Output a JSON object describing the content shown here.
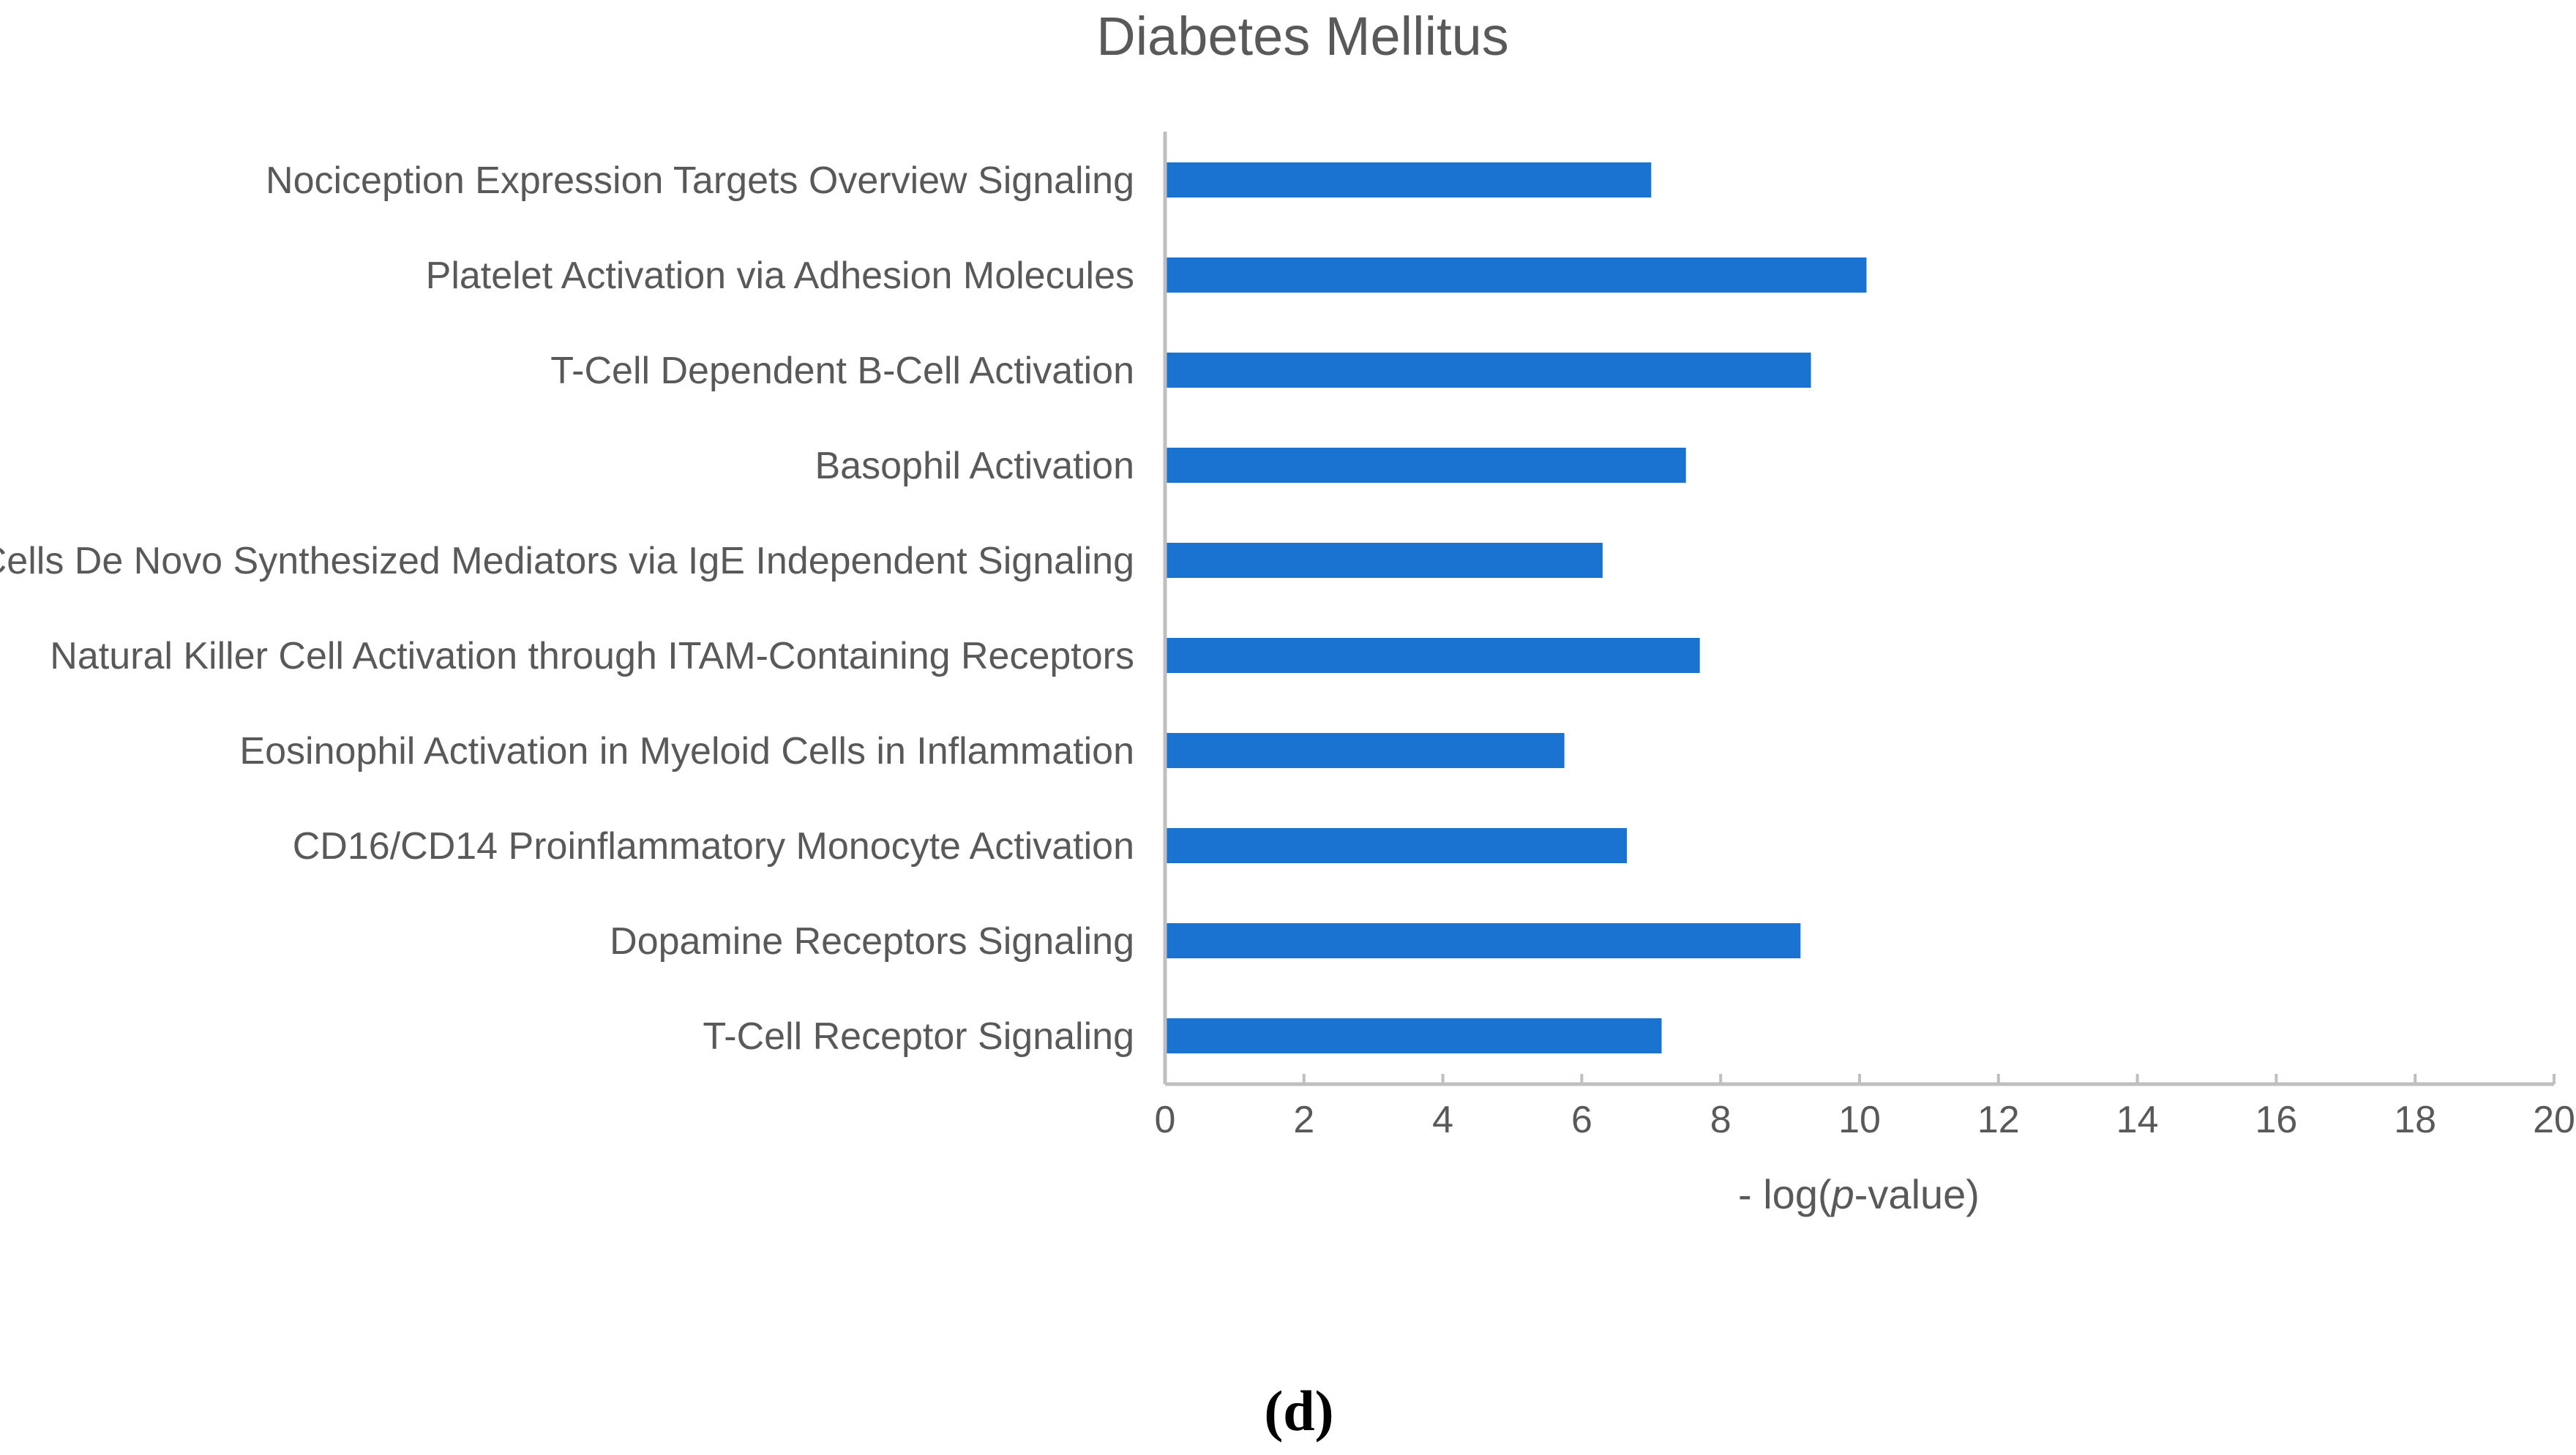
{
  "chart_data": {
    "type": "bar",
    "orientation": "horizontal",
    "title": "Diabetes Mellitus",
    "xlabel": "- log(p-value)",
    "xlabel_parts": {
      "prefix": "- log(",
      "italic": "p",
      "suffix": "-value)"
    },
    "ylabel": "",
    "xlim": [
      0,
      20
    ],
    "x_ticks": [
      0,
      2,
      4,
      6,
      8,
      10,
      12,
      14,
      16,
      18,
      20
    ],
    "grid": false,
    "legend": "none",
    "categories": [
      "Nociception Expression Targets Overview Signaling",
      "Platelet Activation via Adhesion Molecules",
      "T-Cell Dependent B-Cell Activation",
      "Basophil Activation",
      "Mast-Cells De Novo Synthesized Mediators via IgE Independent Signaling",
      "Natural Killer Cell Activation through ITAM-Containing Receptors",
      "Eosinophil Activation in Myeloid Cells in Inflammation",
      "CD16/CD14 Proinflammatory Monocyte Activation",
      "Dopamine Receptors Signaling",
      "T-Cell Receptor Signaling"
    ],
    "values": [
      7.0,
      10.1,
      9.3,
      7.5,
      6.3,
      7.7,
      5.75,
      6.65,
      9.15,
      7.15
    ],
    "bar_color": "#1a73d1",
    "axis_color": "#bfbfbf"
  },
  "panel_label": "(d)"
}
